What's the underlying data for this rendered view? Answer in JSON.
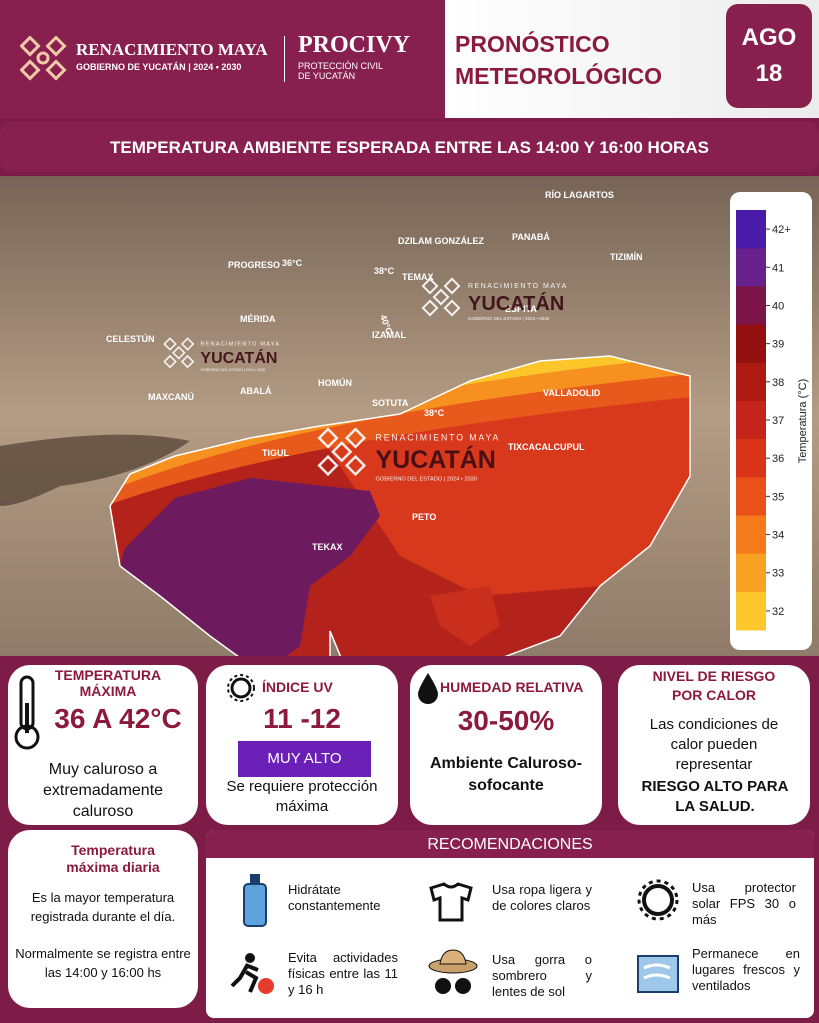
{
  "header": {
    "brand": "RENACIMIENTO MAYA",
    "brand_sub": "GOBIERNO DE YUCATÁN",
    "brand_years": "2024 • 2030",
    "agency": "PROCIVY",
    "agency_sub": [
      "PROTECCIÓN CIVIL",
      "DE YUCATÁN"
    ],
    "title": [
      "PRONÓSTICO",
      "METEOROLÓGICO"
    ],
    "date": {
      "month": "AGO",
      "day": "18"
    }
  },
  "subtitle": "TEMPERATURA AMBIENTE ESPERADA ENTRE LAS 14:00 Y 16:00 HORAS",
  "map": {
    "places": [
      "RÍO LAGARTOS",
      "DZILAM GONZÁLEZ",
      "PANABÁ",
      "TIZIMÍN",
      "PROGRESO",
      "TEMAX",
      "ESPITA",
      "MÉRIDA",
      "IZAMAL",
      "CELESTÚN",
      "HOMÚN",
      "MAXCANÚ",
      "ABALÁ",
      "SOTUTA",
      "VALLADOLID",
      "TIXCACALCUPUL",
      "TIGUL",
      "PETO",
      "TEKAX"
    ],
    "contours": [
      "36°C",
      "38°C",
      "40°C",
      "38°C"
    ],
    "watermark": {
      "line1": "RENACIMIENTO MAYA",
      "line2": "YUCATÁN",
      "line3": "GOBIERNO DEL ESTADO | 2024 • 2030"
    },
    "colorbar": {
      "label": "Temperatura (°C)",
      "ticks": [
        "42+",
        "41",
        "40",
        "39",
        "38",
        "37",
        "36",
        "35",
        "34",
        "33",
        "32"
      ]
    }
  },
  "cards": [
    {
      "title": "TEMPERATURA MÁXIMA",
      "value": "36 A 42°C",
      "text": "Muy caluroso a extremadamente caluroso"
    },
    {
      "title": "ÍNDICE UV",
      "value": "11 -12",
      "badge": "MUY ALTO",
      "text": "Se requiere protección máxima"
    },
    {
      "title": "HUMEDAD RELATIVA",
      "value": "30-50%",
      "text": "Ambiente Caluroso-sofocante"
    },
    {
      "title": "NIVEL DE RIESGO POR CALOR",
      "text": "Las condiciones de calor pueden representar",
      "emphasis": "RIESGO ALTO PARA LA SALUD."
    }
  ],
  "info": {
    "title": "Temperatura máxima diaria",
    "text1": "Es la mayor temperatura registrada durante el día.",
    "text2": "Normalmente se registra entre las 14:00 y 16:00 hs"
  },
  "recommendations": {
    "title": "RECOMENDACIONES",
    "items": [
      "Hidrátate constantemente",
      "Usa ropa ligera y de colores claros",
      "Usa protector solar FPS 30 o más",
      "Evita actividades físicas entre las 11 y 16 h",
      "Usa gorra o sombrero y lentes de sol",
      "Permanece en lugares frescos y ventilados"
    ]
  }
}
